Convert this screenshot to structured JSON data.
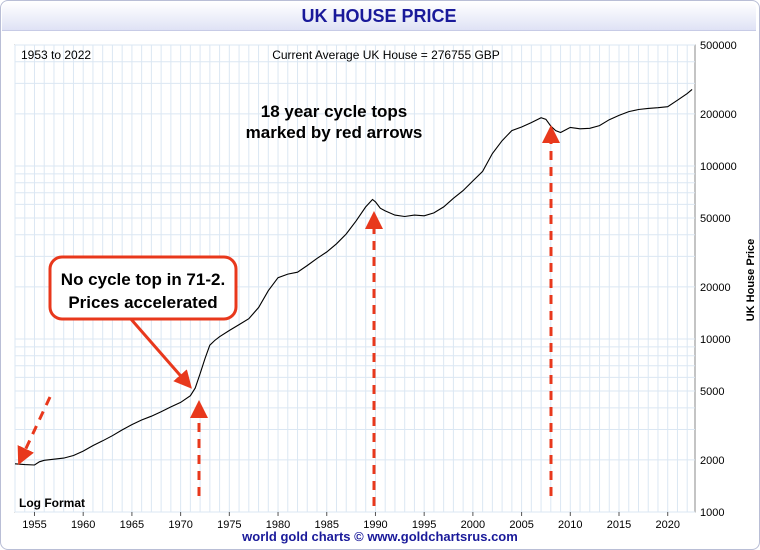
{
  "title": "UK HOUSE PRICE",
  "footer": "world gold charts © www.goldchartsrus.com",
  "colors": {
    "title": "#1a1a9a",
    "line": "#000000",
    "arrow": "#e8381c",
    "grid": "#dbe7f3"
  },
  "chart_data": {
    "type": "line",
    "subtitle_left": "1953 to 2022",
    "subtitle_center": "Current Average UK House = 276755 GBP",
    "scale_note": "Log Format",
    "ylabel": "UK House Price",
    "y_scale": "log",
    "ylim": [
      1000,
      500000
    ],
    "xlim": [
      1953,
      2022.8
    ],
    "y_ticks": [
      1000,
      2000,
      5000,
      10000,
      20000,
      50000,
      100000,
      200000,
      500000
    ],
    "x_ticks": [
      1955,
      1960,
      1965,
      1970,
      1975,
      1980,
      1985,
      1990,
      1995,
      2000,
      2005,
      2010,
      2015,
      2020
    ],
    "grid": true,
    "series": [
      {
        "x": [
          1953,
          1954,
          1955,
          1955.5,
          1956,
          1957,
          1958,
          1959,
          1960,
          1961,
          1962,
          1963,
          1964,
          1965,
          1966,
          1967,
          1968,
          1969,
          1970,
          1971,
          1971.5,
          1972,
          1972.5,
          1973,
          1973.5,
          1974,
          1975,
          1976,
          1977,
          1978,
          1979,
          1980,
          1981,
          1982,
          1983,
          1984,
          1985,
          1986,
          1987,
          1988,
          1989,
          1989.7,
          1990,
          1990.5,
          1991,
          1992,
          1993,
          1994,
          1995,
          1996,
          1997,
          1998,
          1999,
          2000,
          2001,
          2002,
          2003,
          2004,
          2005,
          2006,
          2007,
          2007.5,
          2008,
          2008.5,
          2009,
          2010,
          2011,
          2012,
          2013,
          2014,
          2015,
          2016,
          2017,
          2018,
          2019,
          2020,
          2021,
          2022,
          2022.5
        ],
        "y": [
          1900,
          1880,
          1870,
          1950,
          1990,
          2020,
          2050,
          2120,
          2250,
          2420,
          2580,
          2760,
          2980,
          3200,
          3400,
          3580,
          3800,
          4050,
          4300,
          4700,
          5200,
          6300,
          7700,
          9200,
          9800,
          10300,
          11200,
          12100,
          13100,
          15200,
          19000,
          22600,
          23700,
          24300,
          26600,
          29200,
          31800,
          35500,
          40400,
          48000,
          58000,
          64000,
          62000,
          57000,
          55000,
          52000,
          51000,
          52000,
          51500,
          53500,
          58000,
          65000,
          72000,
          82000,
          93000,
          118000,
          140000,
          160000,
          168000,
          178000,
          190000,
          186000,
          170000,
          160000,
          156000,
          167000,
          164000,
          165000,
          171000,
          185000,
          196000,
          206000,
          212000,
          215000,
          217000,
          220000,
          240000,
          262000,
          276755
        ]
      }
    ],
    "annotations": [
      {
        "text": [
          "18 year cycle tops",
          "marked by red arrows"
        ]
      },
      {
        "text": [
          "No cycle top in 71-2.",
          "Prices accelerated"
        ]
      }
    ]
  }
}
